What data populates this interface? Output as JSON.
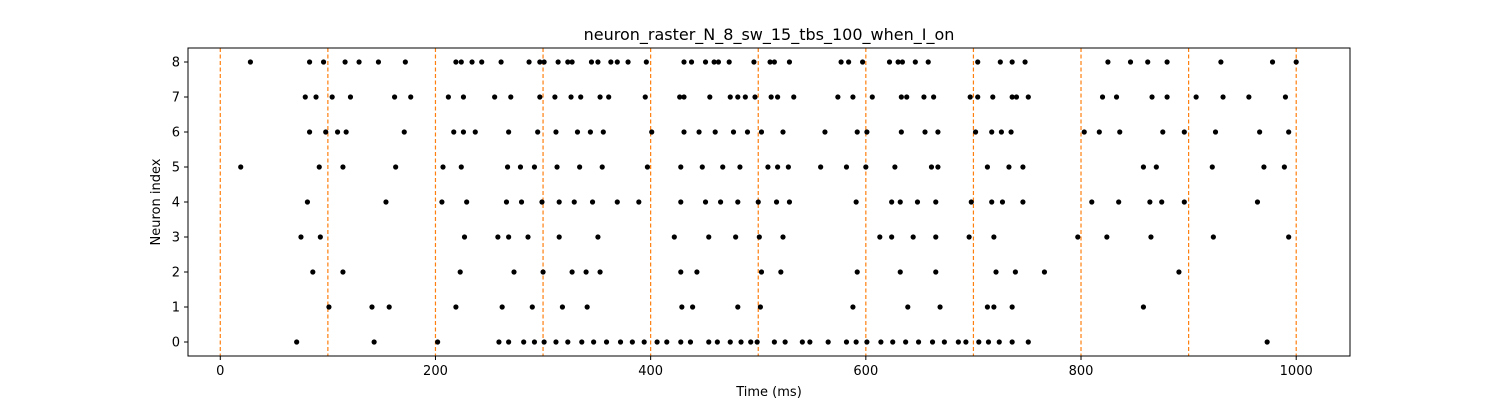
{
  "chart_data": {
    "type": "scatter",
    "title": "neuron_raster_N_8_sw_15_tbs_100_when_I_on",
    "xlabel": "Time (ms)",
    "ylabel": "Neuron index",
    "xlim": [
      -30,
      1050
    ],
    "ylim": [
      -0.4,
      8.4
    ],
    "xticks": [
      0,
      200,
      400,
      600,
      800,
      1000
    ],
    "yticks": [
      0,
      1,
      2,
      3,
      4,
      5,
      6,
      7,
      8
    ],
    "grid": false,
    "marker_color": "#000000",
    "vline_color": "#ff7f0e",
    "vlines": [
      0,
      100,
      200,
      300,
      400,
      500,
      600,
      700,
      800,
      900,
      1000
    ],
    "series": [
      {
        "neuron": 0,
        "x": [
          71,
          143,
          202,
          259,
          268,
          282,
          292,
          301,
          312,
          323,
          336,
          347,
          359,
          372,
          383,
          394,
          406,
          415,
          428,
          437,
          454,
          462,
          474,
          484,
          493,
          499,
          515,
          525,
          541,
          548,
          565,
          582,
          591,
          601,
          614,
          625,
          637,
          649,
          662,
          673,
          686,
          693,
          705,
          714,
          724,
          736,
          751,
          973
        ]
      },
      {
        "neuron": 1,
        "x": [
          101,
          141,
          157,
          219,
          262,
          290,
          318,
          341,
          429,
          439,
          481,
          502,
          588,
          639,
          669,
          713,
          719,
          736,
          858
        ]
      },
      {
        "neuron": 2,
        "x": [
          86,
          114,
          223,
          273,
          300,
          327,
          340,
          353,
          428,
          443,
          503,
          521,
          592,
          632,
          665,
          721,
          739,
          766,
          891
        ]
      },
      {
        "neuron": 3,
        "x": [
          75,
          93,
          227,
          258,
          268,
          286,
          315,
          351,
          422,
          454,
          479,
          501,
          523,
          613,
          624,
          644,
          665,
          696,
          719,
          797,
          824,
          865,
          923,
          993
        ]
      },
      {
        "neuron": 4,
        "x": [
          81,
          154,
          206,
          229,
          266,
          280,
          299,
          315,
          329,
          346,
          369,
          389,
          428,
          451,
          465,
          481,
          500,
          517,
          529,
          591,
          624,
          632,
          648,
          665,
          698,
          717,
          727,
          746,
          810,
          835,
          864,
          875,
          896,
          964
        ]
      },
      {
        "neuron": 5,
        "x": [
          19,
          92,
          114,
          163,
          207,
          224,
          267,
          279,
          292,
          313,
          334,
          355,
          397,
          428,
          448,
          467,
          483,
          509,
          518,
          528,
          558,
          582,
          600,
          627,
          661,
          667,
          713,
          733,
          746,
          858,
          870,
          922,
          970,
          989
        ]
      },
      {
        "neuron": 6,
        "x": [
          83,
          98,
          109,
          117,
          171,
          217,
          226,
          237,
          268,
          295,
          312,
          332,
          344,
          356,
          401,
          431,
          445,
          460,
          477,
          490,
          503,
          523,
          562,
          592,
          601,
          633,
          655,
          667,
          702,
          717,
          726,
          735,
          803,
          817,
          836,
          876,
          896,
          925,
          966,
          993
        ]
      },
      {
        "neuron": 7,
        "x": [
          79,
          89,
          104,
          121,
          162,
          177,
          212,
          226,
          255,
          270,
          297,
          311,
          326,
          335,
          353,
          361,
          395,
          427,
          431,
          455,
          474,
          481,
          488,
          497,
          512,
          518,
          533,
          574,
          588,
          606,
          633,
          638,
          654,
          663,
          697,
          704,
          718,
          736,
          740,
          751,
          820,
          833,
          866,
          880,
          907,
          932,
          956,
          990
        ]
      },
      {
        "neuron": 8,
        "x": [
          28,
          83,
          96,
          116,
          129,
          147,
          172,
          219,
          224,
          234,
          243,
          261,
          287,
          297,
          301,
          314,
          323,
          327,
          345,
          351,
          363,
          369,
          379,
          396,
          431,
          438,
          451,
          459,
          463,
          473,
          496,
          511,
          515,
          529,
          577,
          584,
          597,
          622,
          630,
          634,
          646,
          658,
          704,
          725,
          736,
          748,
          825,
          846,
          862,
          880,
          930,
          978,
          1000
        ]
      }
    ]
  }
}
